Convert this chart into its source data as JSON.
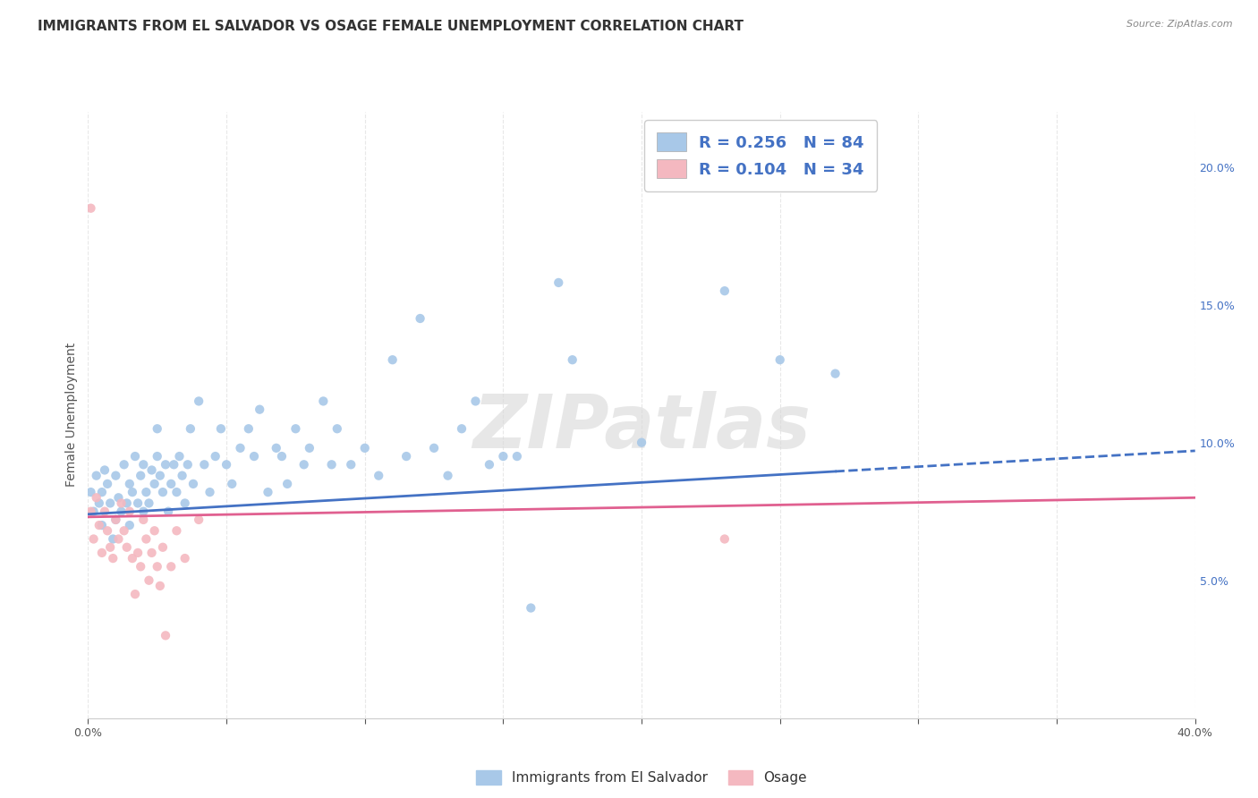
{
  "title": "IMMIGRANTS FROM EL SALVADOR VS OSAGE FEMALE UNEMPLOYMENT CORRELATION CHART",
  "source": "Source: ZipAtlas.com",
  "ylabel": "Female Unemployment",
  "xlim": [
    0.0,
    0.4
  ],
  "ylim": [
    0.0,
    0.22
  ],
  "watermark": "ZIPatlas",
  "legend_blue_r": "0.256",
  "legend_blue_n": "84",
  "legend_pink_r": "0.104",
  "legend_pink_n": "34",
  "blue_color": "#a8c8e8",
  "pink_color": "#f4b8c0",
  "blue_line_color": "#4472c4",
  "pink_line_color": "#e06090",
  "legend_text_color": "#4472c4",
  "blue_scatter": [
    [
      0.001,
      0.082
    ],
    [
      0.002,
      0.075
    ],
    [
      0.003,
      0.088
    ],
    [
      0.004,
      0.078
    ],
    [
      0.005,
      0.07
    ],
    [
      0.005,
      0.082
    ],
    [
      0.006,
      0.09
    ],
    [
      0.007,
      0.085
    ],
    [
      0.008,
      0.078
    ],
    [
      0.009,
      0.065
    ],
    [
      0.01,
      0.072
    ],
    [
      0.01,
      0.088
    ],
    [
      0.011,
      0.08
    ],
    [
      0.012,
      0.075
    ],
    [
      0.013,
      0.092
    ],
    [
      0.014,
      0.078
    ],
    [
      0.015,
      0.085
    ],
    [
      0.015,
      0.07
    ],
    [
      0.016,
      0.082
    ],
    [
      0.017,
      0.095
    ],
    [
      0.018,
      0.078
    ],
    [
      0.019,
      0.088
    ],
    [
      0.02,
      0.075
    ],
    [
      0.02,
      0.092
    ],
    [
      0.021,
      0.082
    ],
    [
      0.022,
      0.078
    ],
    [
      0.023,
      0.09
    ],
    [
      0.024,
      0.085
    ],
    [
      0.025,
      0.095
    ],
    [
      0.025,
      0.105
    ],
    [
      0.026,
      0.088
    ],
    [
      0.027,
      0.082
    ],
    [
      0.028,
      0.092
    ],
    [
      0.029,
      0.075
    ],
    [
      0.03,
      0.085
    ],
    [
      0.031,
      0.092
    ],
    [
      0.032,
      0.082
    ],
    [
      0.033,
      0.095
    ],
    [
      0.034,
      0.088
    ],
    [
      0.035,
      0.078
    ],
    [
      0.036,
      0.092
    ],
    [
      0.037,
      0.105
    ],
    [
      0.038,
      0.085
    ],
    [
      0.04,
      0.115
    ],
    [
      0.042,
      0.092
    ],
    [
      0.044,
      0.082
    ],
    [
      0.046,
      0.095
    ],
    [
      0.048,
      0.105
    ],
    [
      0.05,
      0.092
    ],
    [
      0.052,
      0.085
    ],
    [
      0.055,
      0.098
    ],
    [
      0.058,
      0.105
    ],
    [
      0.06,
      0.095
    ],
    [
      0.062,
      0.112
    ],
    [
      0.065,
      0.082
    ],
    [
      0.068,
      0.098
    ],
    [
      0.07,
      0.095
    ],
    [
      0.072,
      0.085
    ],
    [
      0.075,
      0.105
    ],
    [
      0.078,
      0.092
    ],
    [
      0.08,
      0.098
    ],
    [
      0.085,
      0.115
    ],
    [
      0.088,
      0.092
    ],
    [
      0.09,
      0.105
    ],
    [
      0.095,
      0.092
    ],
    [
      0.1,
      0.098
    ],
    [
      0.105,
      0.088
    ],
    [
      0.11,
      0.13
    ],
    [
      0.115,
      0.095
    ],
    [
      0.12,
      0.145
    ],
    [
      0.125,
      0.098
    ],
    [
      0.13,
      0.088
    ],
    [
      0.135,
      0.105
    ],
    [
      0.14,
      0.115
    ],
    [
      0.145,
      0.092
    ],
    [
      0.15,
      0.095
    ],
    [
      0.155,
      0.095
    ],
    [
      0.16,
      0.04
    ],
    [
      0.17,
      0.158
    ],
    [
      0.175,
      0.13
    ],
    [
      0.2,
      0.1
    ],
    [
      0.23,
      0.155
    ],
    [
      0.25,
      0.13
    ],
    [
      0.27,
      0.125
    ]
  ],
  "pink_scatter": [
    [
      0.001,
      0.075
    ],
    [
      0.002,
      0.065
    ],
    [
      0.003,
      0.08
    ],
    [
      0.004,
      0.07
    ],
    [
      0.005,
      0.06
    ],
    [
      0.006,
      0.075
    ],
    [
      0.007,
      0.068
    ],
    [
      0.008,
      0.062
    ],
    [
      0.009,
      0.058
    ],
    [
      0.01,
      0.072
    ],
    [
      0.011,
      0.065
    ],
    [
      0.012,
      0.078
    ],
    [
      0.013,
      0.068
    ],
    [
      0.014,
      0.062
    ],
    [
      0.015,
      0.075
    ],
    [
      0.016,
      0.058
    ],
    [
      0.017,
      0.045
    ],
    [
      0.018,
      0.06
    ],
    [
      0.019,
      0.055
    ],
    [
      0.02,
      0.072
    ],
    [
      0.021,
      0.065
    ],
    [
      0.022,
      0.05
    ],
    [
      0.023,
      0.06
    ],
    [
      0.024,
      0.068
    ],
    [
      0.025,
      0.055
    ],
    [
      0.026,
      0.048
    ],
    [
      0.027,
      0.062
    ],
    [
      0.028,
      0.03
    ],
    [
      0.03,
      0.055
    ],
    [
      0.032,
      0.068
    ],
    [
      0.035,
      0.058
    ],
    [
      0.04,
      0.072
    ],
    [
      0.001,
      0.185
    ],
    [
      0.23,
      0.065
    ]
  ],
  "blue_trendline": [
    [
      0.0,
      0.074
    ],
    [
      0.4,
      0.097
    ]
  ],
  "pink_trendline": [
    [
      0.0,
      0.073
    ],
    [
      0.4,
      0.08
    ]
  ],
  "blue_trendline_dashed_start": 0.27,
  "title_fontsize": 11,
  "axis_label_fontsize": 10,
  "tick_fontsize": 9,
  "watermark_fontsize": 60,
  "watermark_color": "#d8d8d8",
  "background_color": "#ffffff",
  "grid_color": "#e8e8e8",
  "right_tick_color": "#4472c4"
}
